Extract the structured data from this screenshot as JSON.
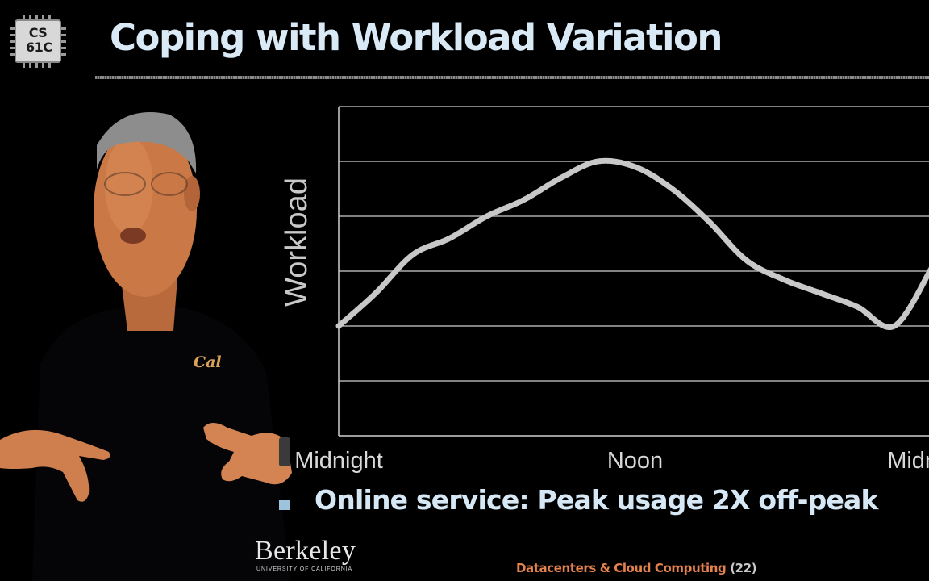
{
  "logo": {
    "line1": "CS",
    "line2": "61C"
  },
  "slide": {
    "title": "Coping with Workload Variation",
    "bullet": "Online service: Peak usage 2X off-peak"
  },
  "footer": {
    "institution": "Berkeley",
    "institution_sub": "UNIVERSITY OF CALIFORNIA",
    "course_topic": "Datacenters & Cloud Computing",
    "slide_number": "(22)"
  },
  "speaker": {
    "shirt_logo": "Cal"
  },
  "chart_data": {
    "type": "line",
    "title": "",
    "ylabel": "Workload",
    "xlabel": "",
    "x_tick_labels": [
      "Midnight",
      "Noon",
      "Midnight"
    ],
    "grid": true,
    "ylim": [
      0,
      6
    ],
    "x": [
      0,
      1.5,
      3,
      4.5,
      6,
      7.5,
      9,
      10.5,
      12,
      13.5,
      15,
      16.5,
      18,
      19.5,
      21,
      22.5,
      24
    ],
    "series": [
      {
        "values": [
          2.0,
          2.6,
          3.3,
          3.6,
          4.0,
          4.3,
          4.7,
          5.0,
          4.9,
          4.5,
          3.9,
          3.2,
          2.85,
          2.6,
          2.35,
          2.0,
          3.05
        ]
      }
    ],
    "colors": {
      "line": "#c8c8c8",
      "grid": "#d0d0d0"
    }
  }
}
